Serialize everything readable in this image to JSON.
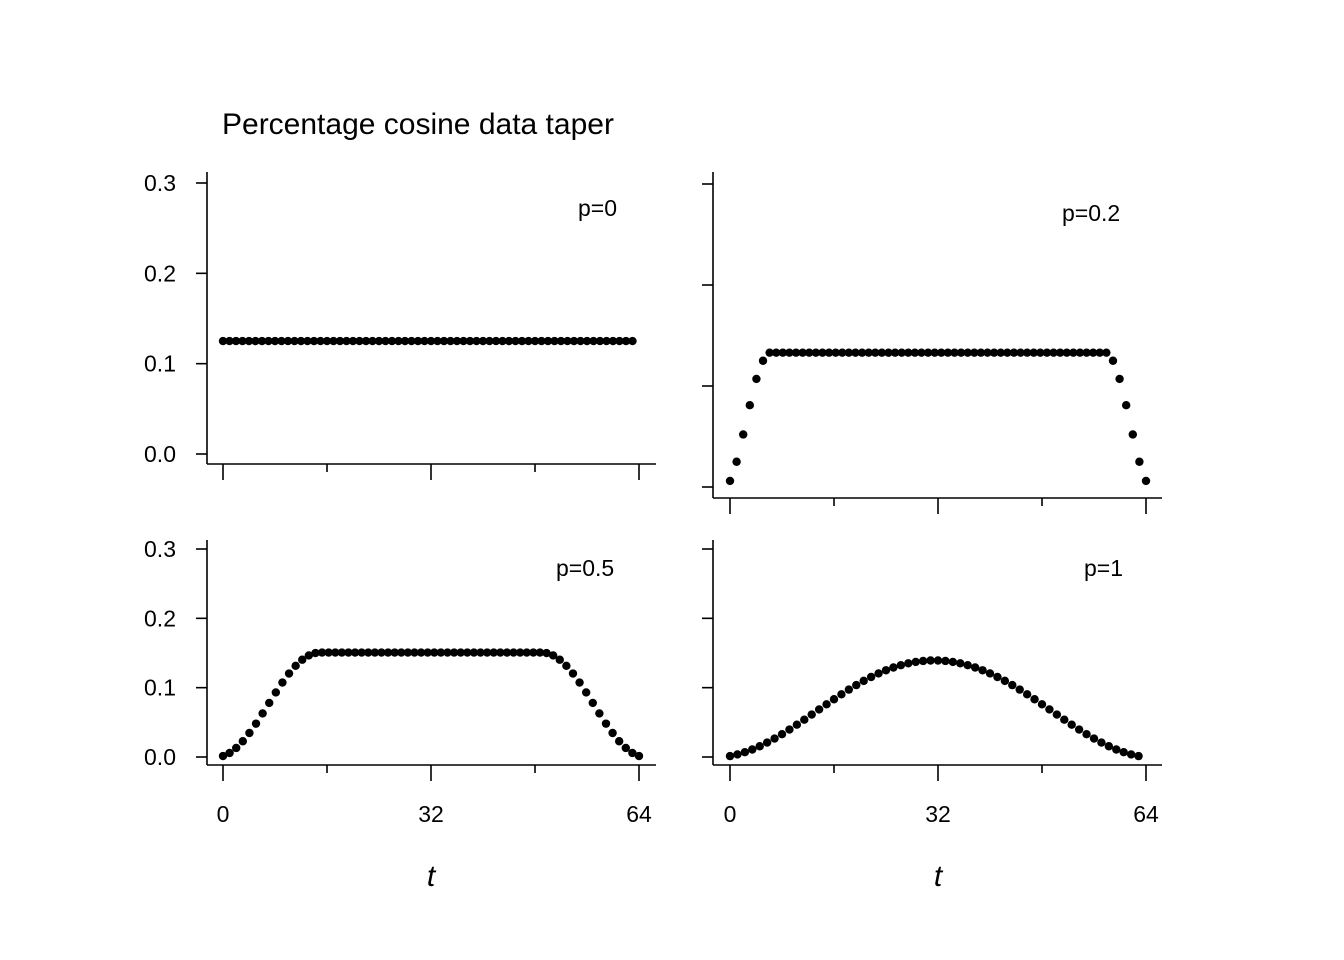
{
  "title": "Percentage cosine data taper",
  "chart_data": [
    {
      "type": "scatter",
      "panel": "top-left",
      "annotation": "p=0",
      "p": 0,
      "xlim": [
        0,
        64
      ],
      "ylim": [
        0,
        0.3
      ],
      "x_ticks": [
        0,
        16,
        32,
        48,
        64
      ],
      "x_tick_labels": [],
      "y_ticks": [
        0.0,
        0.1,
        0.2,
        0.3
      ],
      "y_tick_labels": [
        "0.0",
        "0.1",
        "0.2",
        "0.3"
      ],
      "xlabel": "",
      "x": [
        0,
        1,
        2,
        3,
        4,
        5,
        6,
        7,
        8,
        9,
        10,
        11,
        12,
        13,
        14,
        15,
        16,
        17,
        18,
        19,
        20,
        21,
        22,
        23,
        24,
        25,
        26,
        27,
        28,
        29,
        30,
        31,
        32,
        33,
        34,
        35,
        36,
        37,
        38,
        39,
        40,
        41,
        42,
        43,
        44,
        45,
        46,
        47,
        48,
        49,
        50,
        51,
        52,
        53,
        54,
        55,
        56,
        57,
        58,
        59,
        60,
        61,
        62,
        63
      ],
      "y": [
        0.125,
        0.125,
        0.125,
        0.125,
        0.125,
        0.125,
        0.125,
        0.125,
        0.125,
        0.125,
        0.125,
        0.125,
        0.125,
        0.125,
        0.125,
        0.125,
        0.125,
        0.125,
        0.125,
        0.125,
        0.125,
        0.125,
        0.125,
        0.125,
        0.125,
        0.125,
        0.125,
        0.125,
        0.125,
        0.125,
        0.125,
        0.125,
        0.125,
        0.125,
        0.125,
        0.125,
        0.125,
        0.125,
        0.125,
        0.125,
        0.125,
        0.125,
        0.125,
        0.125,
        0.125,
        0.125,
        0.125,
        0.125,
        0.125,
        0.125,
        0.125,
        0.125,
        0.125,
        0.125,
        0.125,
        0.125,
        0.125,
        0.125,
        0.125,
        0.125,
        0.125,
        0.125,
        0.125,
        0.125
      ]
    },
    {
      "type": "scatter",
      "panel": "top-right",
      "annotation": "p=0.2",
      "p": 0.2,
      "xlim": [
        0,
        64
      ],
      "ylim": [
        0,
        0.3
      ],
      "x_ticks": [
        0,
        16,
        32,
        48,
        64
      ],
      "x_tick_labels": [],
      "y_ticks": [
        0.0,
        0.1,
        0.2,
        0.3
      ],
      "y_tick_labels": [],
      "xlabel": "",
      "x": [
        0,
        1,
        2,
        3,
        4,
        5,
        6,
        7,
        8,
        9,
        10,
        11,
        12,
        13,
        14,
        15,
        16,
        17,
        18,
        19,
        20,
        21,
        22,
        23,
        24,
        25,
        26,
        27,
        28,
        29,
        30,
        31,
        32,
        33,
        34,
        35,
        36,
        37,
        38,
        39,
        40,
        41,
        42,
        43,
        44,
        45,
        46,
        47,
        48,
        49,
        50,
        51,
        52,
        53,
        54,
        55,
        56,
        57,
        58,
        59,
        60,
        61,
        62,
        63
      ],
      "y": [
        0.006,
        0.025,
        0.052,
        0.081,
        0.107,
        0.125,
        0.133,
        0.133,
        0.133,
        0.133,
        0.133,
        0.133,
        0.133,
        0.133,
        0.133,
        0.133,
        0.133,
        0.133,
        0.133,
        0.133,
        0.133,
        0.133,
        0.133,
        0.133,
        0.133,
        0.133,
        0.133,
        0.133,
        0.133,
        0.133,
        0.133,
        0.133,
        0.133,
        0.133,
        0.133,
        0.133,
        0.133,
        0.133,
        0.133,
        0.133,
        0.133,
        0.133,
        0.133,
        0.133,
        0.133,
        0.133,
        0.133,
        0.133,
        0.133,
        0.133,
        0.133,
        0.133,
        0.133,
        0.133,
        0.133,
        0.133,
        0.133,
        0.133,
        0.125,
        0.107,
        0.081,
        0.052,
        0.025,
        0.006
      ]
    },
    {
      "type": "scatter",
      "panel": "bottom-left",
      "annotation": "p=0.5",
      "p": 0.5,
      "xlim": [
        0,
        64
      ],
      "ylim": [
        0,
        0.3
      ],
      "x_ticks": [
        0,
        16,
        32,
        48,
        64
      ],
      "x_tick_labels": [
        "0",
        "",
        "32",
        "",
        "64"
      ],
      "y_ticks": [
        0.0,
        0.1,
        0.2,
        0.3
      ],
      "y_tick_labels": [
        "0.0",
        "0.1",
        "0.2",
        "0.3"
      ],
      "xlabel": "t",
      "x": [
        0,
        1,
        2,
        3,
        4,
        5,
        6,
        7,
        8,
        9,
        10,
        11,
        12,
        13,
        14,
        15,
        16,
        17,
        18,
        19,
        20,
        21,
        22,
        23,
        24,
        25,
        26,
        27,
        28,
        29,
        30,
        31,
        32,
        33,
        34,
        35,
        36,
        37,
        38,
        39,
        40,
        41,
        42,
        43,
        44,
        45,
        46,
        47,
        48,
        49,
        50,
        51,
        52,
        53,
        54,
        55,
        56,
        57,
        58,
        59,
        60,
        61,
        62,
        63
      ],
      "y": [
        0.0014,
        0.0058,
        0.013,
        0.0227,
        0.0346,
        0.0481,
        0.0628,
        0.078,
        0.0931,
        0.1074,
        0.1204,
        0.1315,
        0.1403,
        0.1465,
        0.1499,
        0.1506,
        0.1506,
        0.1506,
        0.1506,
        0.1506,
        0.1506,
        0.1506,
        0.1506,
        0.1506,
        0.1506,
        0.1506,
        0.1506,
        0.1506,
        0.1506,
        0.1506,
        0.1506,
        0.1506,
        0.1506,
        0.1506,
        0.1506,
        0.1506,
        0.1506,
        0.1506,
        0.1506,
        0.1506,
        0.1506,
        0.1506,
        0.1506,
        0.1506,
        0.1506,
        0.1506,
        0.1506,
        0.1506,
        0.1506,
        0.1499,
        0.1465,
        0.1403,
        0.1315,
        0.1204,
        0.1074,
        0.0931,
        0.078,
        0.0628,
        0.0481,
        0.0346,
        0.0227,
        0.013,
        0.0058,
        0.0014
      ]
    },
    {
      "type": "scatter",
      "panel": "bottom-right",
      "annotation": "p=1",
      "p": 1,
      "xlim": [
        0,
        64
      ],
      "ylim": [
        0,
        0.3
      ],
      "x_ticks": [
        0,
        16,
        32,
        48,
        64
      ],
      "x_tick_labels": [
        "0",
        "",
        "32",
        "",
        "64"
      ],
      "y_ticks": [
        0.0,
        0.1,
        0.2,
        0.3
      ],
      "y_tick_labels": [],
      "xlabel": "t",
      "x": [
        0,
        1,
        2,
        3,
        4,
        5,
        6,
        7,
        8,
        9,
        10,
        11,
        12,
        13,
        14,
        15,
        16,
        17,
        18,
        19,
        20,
        21,
        22,
        23,
        24,
        25,
        26,
        27,
        28,
        29,
        30,
        31,
        32,
        33,
        34,
        35,
        36,
        37,
        38,
        39,
        40,
        41,
        42,
        43,
        44,
        45,
        46,
        47,
        48,
        49,
        50,
        51,
        52,
        53,
        54,
        55,
        56,
        57,
        58,
        59,
        60,
        61,
        62,
        63
      ],
      "y": [
        0.0013,
        0.0037,
        0.0069,
        0.0108,
        0.0155,
        0.0208,
        0.0266,
        0.0329,
        0.0396,
        0.0466,
        0.0538,
        0.0612,
        0.0686,
        0.076,
        0.0833,
        0.0904,
        0.0972,
        0.1037,
        0.1098,
        0.1154,
        0.1205,
        0.1251,
        0.1291,
        0.1324,
        0.1351,
        0.1371,
        0.1385,
        0.1392,
        0.1392,
        0.1385,
        0.1371,
        0.1351,
        0.1324,
        0.1291,
        0.1251,
        0.1205,
        0.1154,
        0.1098,
        0.1037,
        0.0972,
        0.0904,
        0.0833,
        0.076,
        0.0686,
        0.0612,
        0.0538,
        0.0466,
        0.0396,
        0.0329,
        0.0266,
        0.0208,
        0.0155,
        0.0108,
        0.0069,
        0.0037,
        0.0013,
        0.0002,
        0.0002,
        0.0002,
        0.0002,
        0.0002,
        0.0002,
        0.0002,
        0.0002
      ]
    }
  ]
}
